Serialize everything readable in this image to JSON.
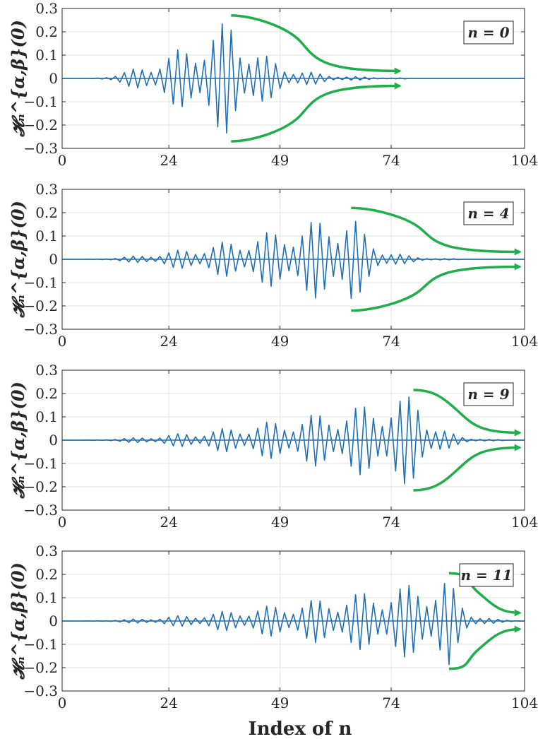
{
  "chart_data": [
    {
      "type": "line",
      "legend": "n = 0",
      "legend_placement": "top-right",
      "ylabel": "𝓗ₙ^{α,β}(0)",
      "xlabel": "",
      "xlim": [
        0,
        104
      ],
      "ylim": [
        -0.3,
        0.3
      ],
      "grid": true,
      "x_ticks": [
        "0",
        "24",
        "49",
        "74",
        "104"
      ],
      "y_ticks": [
        "0.3",
        "0.2",
        "0.1",
        "0",
        "-0.1",
        "-0.2",
        "-0.3"
      ],
      "envelope": {
        "start": 6,
        "peak": 38,
        "end": 78,
        "amplitude": 0.26
      },
      "arrows": {
        "x_start": 38,
        "x_end": 76,
        "y_start": 0.27,
        "y_end": 0.032
      }
    },
    {
      "type": "line",
      "legend": "n = 4",
      "legend_placement": "top-right",
      "ylabel": "𝓗ₙ^{α,β}(0)",
      "xlabel": "",
      "xlim": [
        0,
        104
      ],
      "ylim": [
        -0.3,
        0.3
      ],
      "grid": true,
      "x_ticks": [
        "0",
        "24",
        "49",
        "74",
        "104"
      ],
      "y_ticks": [
        "0.3",
        "0.2",
        "0.1",
        "0",
        "-0.1",
        "-0.2",
        "-0.3"
      ],
      "envelope": {
        "start": 5,
        "peak": 65,
        "end": 90,
        "amplitude": 0.21
      },
      "arrows": {
        "x_start": 65,
        "x_end": 103,
        "y_start": 0.22,
        "y_end": 0.032
      }
    },
    {
      "type": "line",
      "legend": "n = 9",
      "legend_placement": "top-right",
      "ylabel": "𝓗ₙ^{α,β}(0)",
      "xlabel": "",
      "xlim": [
        0,
        104
      ],
      "ylim": [
        -0.3,
        0.3
      ],
      "grid": true,
      "x_ticks": [
        "0",
        "24",
        "49",
        "74",
        "104"
      ],
      "y_ticks": [
        "0.3",
        "0.2",
        "0.1",
        "0",
        "-0.1",
        "-0.2",
        "-0.3"
      ],
      "envelope": {
        "start": 4,
        "peak": 80,
        "end": 100,
        "amplitude": 0.2
      },
      "arrows": {
        "x_start": 79,
        "x_end": 103,
        "y_start": 0.215,
        "y_end": 0.032
      }
    },
    {
      "type": "line",
      "legend": "n = 11",
      "legend_placement": "top-right",
      "ylabel": "𝓗ₙ^{α,β}(0)",
      "xlabel": "Index of n",
      "xlim": [
        0,
        104
      ],
      "ylim": [
        -0.3,
        0.3
      ],
      "grid": true,
      "x_ticks": [
        "0",
        "24",
        "49",
        "74",
        "104"
      ],
      "y_ticks": [
        "0.3",
        "0.2",
        "0.1",
        "0",
        "-0.1",
        "-0.2",
        "-0.3"
      ],
      "envelope": {
        "start": 4,
        "peak": 87,
        "end": 104,
        "amplitude": 0.19
      },
      "arrows": {
        "x_start": 87,
        "x_end": 103,
        "y_start": 0.205,
        "y_end": 0.035
      }
    }
  ],
  "colors": {
    "line": "#1f6fb5",
    "arrow": "#1fae4b",
    "grid": "#e3e3e3",
    "axis": "#262626"
  }
}
